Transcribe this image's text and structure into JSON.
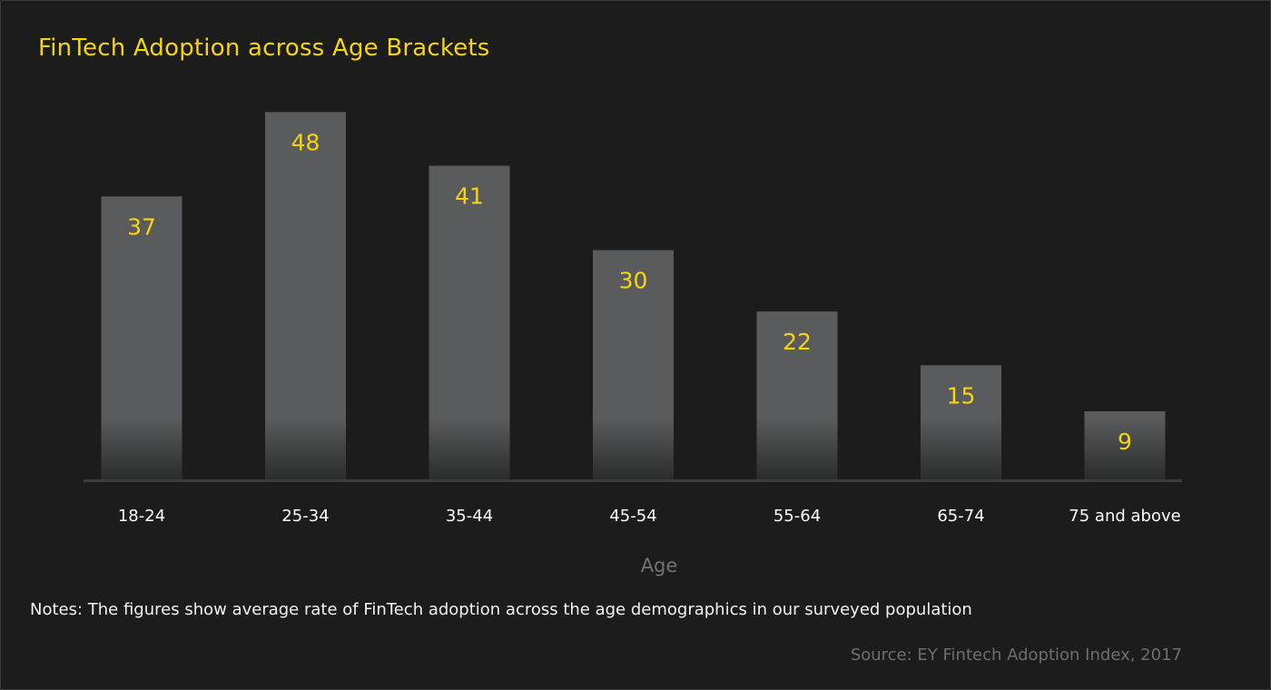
{
  "chart_data": {
    "type": "bar",
    "title": "FinTech Adoption across Age Brackets",
    "xlabel": "Age",
    "ylabel": "",
    "categories": [
      "18-24",
      "25-34",
      "35-44",
      "45-54",
      "55-64",
      "65-74",
      "75 and above"
    ],
    "values": [
      37,
      48,
      41,
      30,
      22,
      15,
      9
    ],
    "ylim": [
      0,
      52
    ],
    "grid": false,
    "legend": "none",
    "notes": "Notes: The figures show average rate of FinTech adoption across the age demographics in our surveyed population",
    "source": "Source: EY Fintech Adoption Index, 2017"
  },
  "colors": {
    "background": "#1b1c1b",
    "bar": "#5a5b5c",
    "bar_fade": "#2a2b2b",
    "value_label": "#f5d410",
    "title": "#f5d410",
    "tick_label": "#ffffff",
    "axis_label": "#737373",
    "axis_line": "#3c3c3c"
  }
}
